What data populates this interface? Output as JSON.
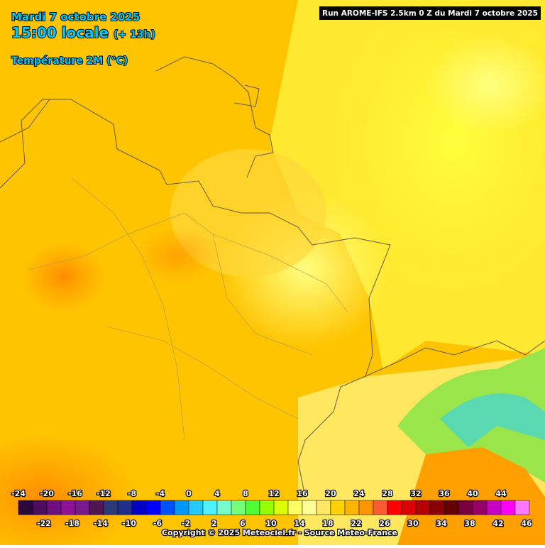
{
  "header": {
    "date": "Mardi 7 octobre 2025",
    "time": "15:00 locale",
    "offset": "(+ 13h)",
    "variable": "Température 2M (°C)",
    "run": "Run AROME-IFS 2.5km 0 Z du Mardi 7 octobre 2025"
  },
  "legend": {
    "items": [
      {
        "value": -24,
        "color": "#2d0a3c"
      },
      {
        "value": -22,
        "color": "#4b0d5c"
      },
      {
        "value": -20,
        "color": "#6e0f80"
      },
      {
        "value": -18,
        "color": "#8e1296"
      },
      {
        "value": -16,
        "color": "#781a8a"
      },
      {
        "value": -14,
        "color": "#501650"
      },
      {
        "value": -12,
        "color": "#2d3a78"
      },
      {
        "value": -10,
        "color": "#1e2f8c"
      },
      {
        "value": -8,
        "color": "#0000c8"
      },
      {
        "value": -6,
        "color": "#0000ff"
      },
      {
        "value": -4,
        "color": "#0050ff"
      },
      {
        "value": -2,
        "color": "#0096ff"
      },
      {
        "value": 0,
        "color": "#28c8ff"
      },
      {
        "value": 2,
        "color": "#50f0ff"
      },
      {
        "value": 4,
        "color": "#78ffc8"
      },
      {
        "value": 6,
        "color": "#78ff78"
      },
      {
        "value": 8,
        "color": "#50ff32"
      },
      {
        "value": 10,
        "color": "#96ff00"
      },
      {
        "value": 12,
        "color": "#dcff00"
      },
      {
        "value": 14,
        "color": "#ffff64"
      },
      {
        "value": 16,
        "color": "#ffff96"
      },
      {
        "value": 18,
        "color": "#ffe664"
      },
      {
        "value": 20,
        "color": "#ffd200"
      },
      {
        "value": 22,
        "color": "#ffb400"
      },
      {
        "value": 24,
        "color": "#ff9600"
      },
      {
        "value": 26,
        "color": "#ff5a32"
      },
      {
        "value": 28,
        "color": "#ff0000"
      },
      {
        "value": 30,
        "color": "#dc0000"
      },
      {
        "value": 32,
        "color": "#b40000"
      },
      {
        "value": 34,
        "color": "#8c0000"
      },
      {
        "value": 36,
        "color": "#640000"
      },
      {
        "value": 38,
        "color": "#78003c"
      },
      {
        "value": 40,
        "color": "#960064"
      },
      {
        "value": 42,
        "color": "#c800c8"
      },
      {
        "value": 44,
        "color": "#ff00ff"
      },
      {
        "value": 46,
        "color": "#ff78ff"
      }
    ]
  },
  "footer": {
    "copyright": "Copyright © 2025 Meteociel.fr - Source Meteo-France"
  }
}
